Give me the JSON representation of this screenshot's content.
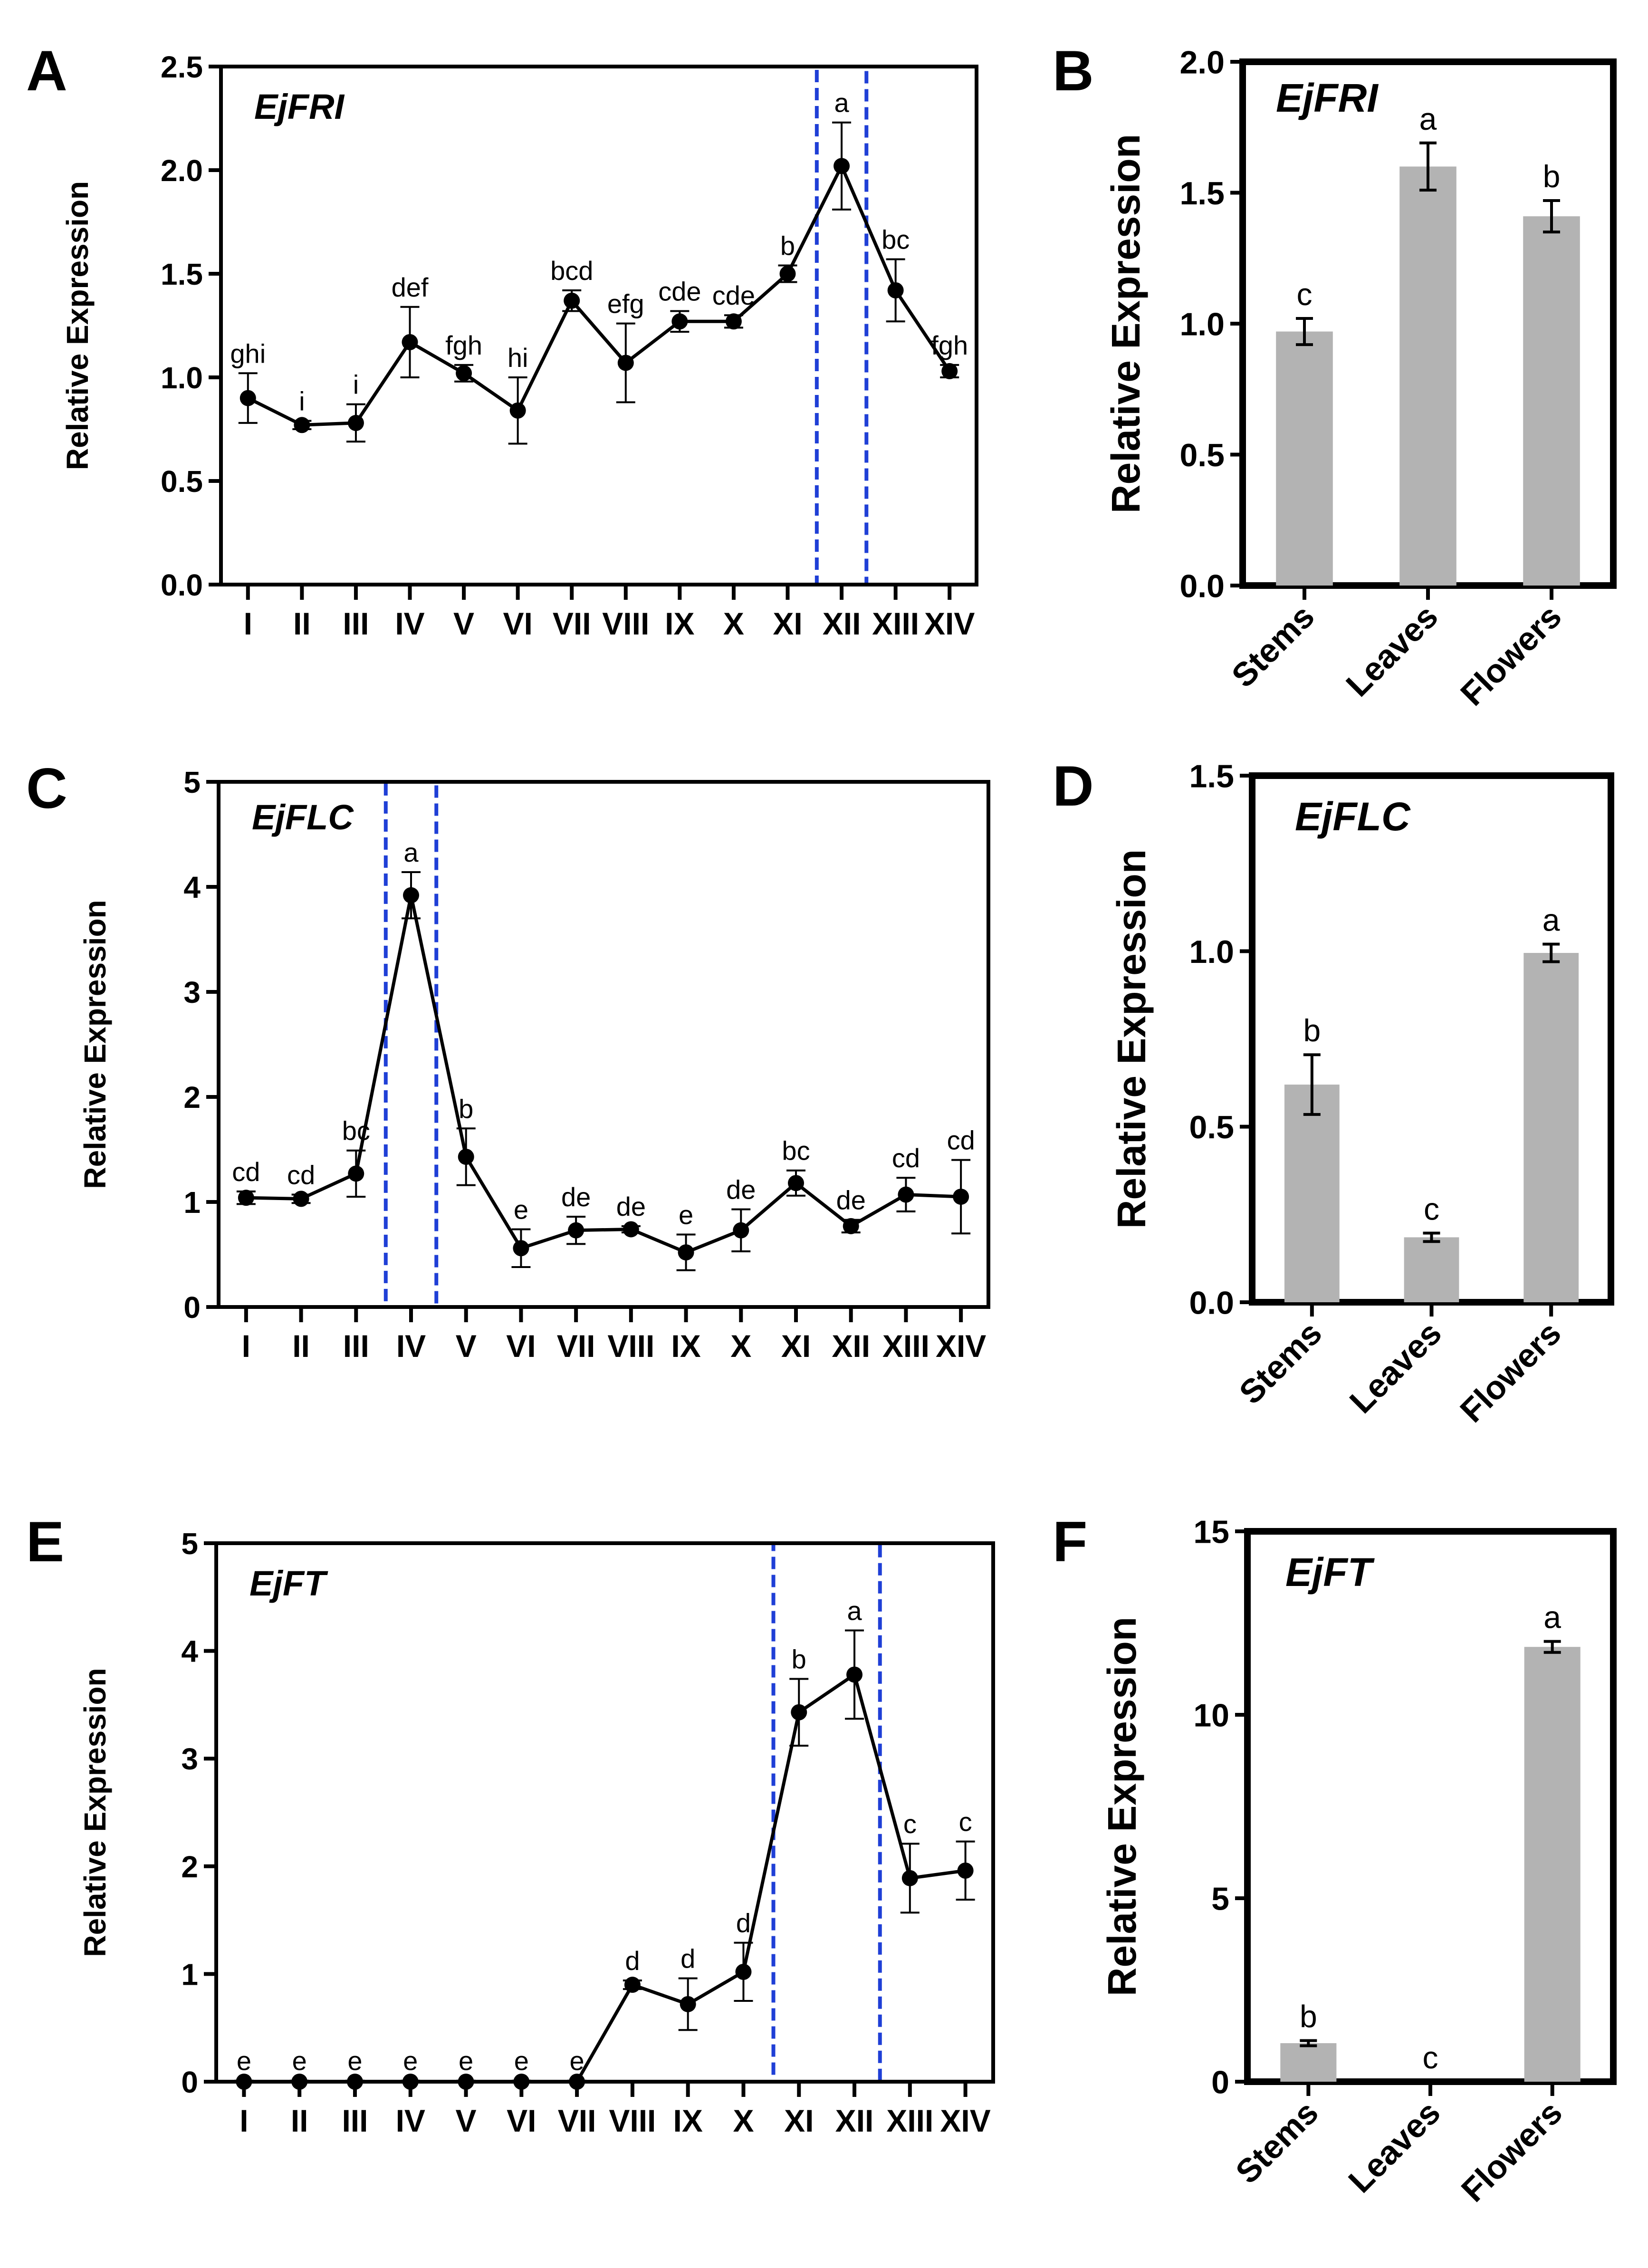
{
  "figure": {
    "panels": [
      {
        "letter": "A"
      },
      {
        "letter": "B"
      },
      {
        "letter": "C"
      },
      {
        "letter": "D"
      },
      {
        "letter": "E"
      },
      {
        "letter": "F"
      }
    ]
  },
  "chart_data": [
    {
      "panel": "A",
      "type": "line",
      "gene": "EjFRI",
      "ylabel": "Relative Expression",
      "xlabel": "",
      "ylim": [
        0,
        2.5
      ],
      "yticks": [
        "0.0",
        "0.5",
        "1.0",
        "1.5",
        "2.0",
        "2.5"
      ],
      "categories": [
        "I",
        "II",
        "III",
        "IV",
        "V",
        "VI",
        "VII",
        "VIII",
        "IX",
        "X",
        "XI",
        "XII",
        "XIII",
        "XIV"
      ],
      "values": [
        0.9,
        0.77,
        0.78,
        1.17,
        1.02,
        0.84,
        1.37,
        1.07,
        1.27,
        1.27,
        1.5,
        2.02,
        1.42,
        1.03
      ],
      "errors": [
        0.12,
        0.02,
        0.09,
        0.17,
        0.04,
        0.16,
        0.05,
        0.19,
        0.05,
        0.03,
        0.04,
        0.21,
        0.15,
        0.03
      ],
      "letters": [
        "ghi",
        "i",
        "i",
        "def",
        "fgh",
        "hi",
        "bcd",
        "efg",
        "cde",
        "cde",
        "b",
        "a",
        "bc",
        "fgh"
      ],
      "highlight": [
        "XII"
      ]
    },
    {
      "panel": "B",
      "type": "bar",
      "gene": "EjFRI",
      "ylabel": "Relative Expression",
      "xlabel": "",
      "ylim": [
        0,
        2.0
      ],
      "yticks": [
        "0.0",
        "0.5",
        "1.0",
        "1.5",
        "2.0"
      ],
      "categories": [
        "Stems",
        "Leaves",
        "Flowers"
      ],
      "values": [
        0.97,
        1.6,
        1.41
      ],
      "errors": [
        0.05,
        0.09,
        0.06
      ],
      "letters": [
        "c",
        "a",
        "b"
      ]
    },
    {
      "panel": "C",
      "type": "line",
      "gene": "EjFLC",
      "ylabel": "Relative Expression",
      "xlabel": "",
      "ylim": [
        0,
        5
      ],
      "yticks": [
        "0",
        "1",
        "2",
        "3",
        "4",
        "5"
      ],
      "categories": [
        "I",
        "II",
        "III",
        "IV",
        "V",
        "VI",
        "VII",
        "VIII",
        "IX",
        "X",
        "XI",
        "XII",
        "XIII",
        "XIV"
      ],
      "values": [
        1.04,
        1.03,
        1.27,
        3.92,
        1.43,
        0.56,
        0.73,
        0.74,
        0.52,
        0.73,
        1.18,
        0.77,
        1.07,
        1.05
      ],
      "errors": [
        0.06,
        0.04,
        0.22,
        0.22,
        0.27,
        0.18,
        0.13,
        0.03,
        0.17,
        0.2,
        0.12,
        0.06,
        0.16,
        0.35
      ],
      "letters": [
        "cd",
        "cd",
        "bc",
        "a",
        "b",
        "e",
        "de",
        "de",
        "e",
        "de",
        "bc",
        "de",
        "cd",
        "cd"
      ],
      "highlight": [
        "IV"
      ]
    },
    {
      "panel": "D",
      "type": "bar",
      "gene": "EjFLC",
      "ylabel": "Relative Expression",
      "xlabel": "",
      "ylim": [
        0,
        1.5
      ],
      "yticks": [
        "0.0",
        "0.5",
        "1.0",
        "1.5"
      ],
      "categories": [
        "Stems",
        "Leaves",
        "Flowers"
      ],
      "values": [
        0.62,
        0.185,
        0.995
      ],
      "errors": [
        0.085,
        0.012,
        0.025
      ],
      "letters": [
        "b",
        "c",
        "a"
      ]
    },
    {
      "panel": "E",
      "type": "line",
      "gene": "EjFT",
      "ylabel": "Relative Expression",
      "xlabel": "",
      "ylim": [
        0,
        5
      ],
      "yticks": [
        "0",
        "1",
        "2",
        "3",
        "4",
        "5"
      ],
      "categories": [
        "I",
        "II",
        "III",
        "IV",
        "V",
        "VI",
        "VII",
        "VIII",
        "IX",
        "X",
        "XI",
        "XII",
        "XIII",
        "XIV"
      ],
      "values": [
        0.0,
        0.0,
        0.0,
        0.0,
        0.0,
        0.0,
        0.0,
        0.9,
        0.72,
        1.02,
        3.43,
        3.78,
        1.89,
        1.96
      ],
      "errors": [
        0.01,
        0.01,
        0.01,
        0.01,
        0.01,
        0.01,
        0.01,
        0.04,
        0.24,
        0.27,
        0.31,
        0.41,
        0.32,
        0.27
      ],
      "letters": [
        "e",
        "e",
        "e",
        "e",
        "e",
        "e",
        "e",
        "d",
        "d",
        "d",
        "b",
        "a",
        "c",
        "c"
      ],
      "highlight": [
        "XI",
        "XII"
      ]
    },
    {
      "panel": "F",
      "type": "bar",
      "gene": "EjFT",
      "ylabel": "Relative Expression",
      "xlabel": "",
      "ylim": [
        0,
        15
      ],
      "yticks": [
        "0",
        "5",
        "10",
        "15"
      ],
      "categories": [
        "Stems",
        "Leaves",
        "Flowers"
      ],
      "values": [
        1.05,
        0.0,
        11.85
      ],
      "errors": [
        0.07,
        0.0,
        0.15
      ],
      "letters": [
        "b",
        "c",
        "a"
      ]
    }
  ]
}
